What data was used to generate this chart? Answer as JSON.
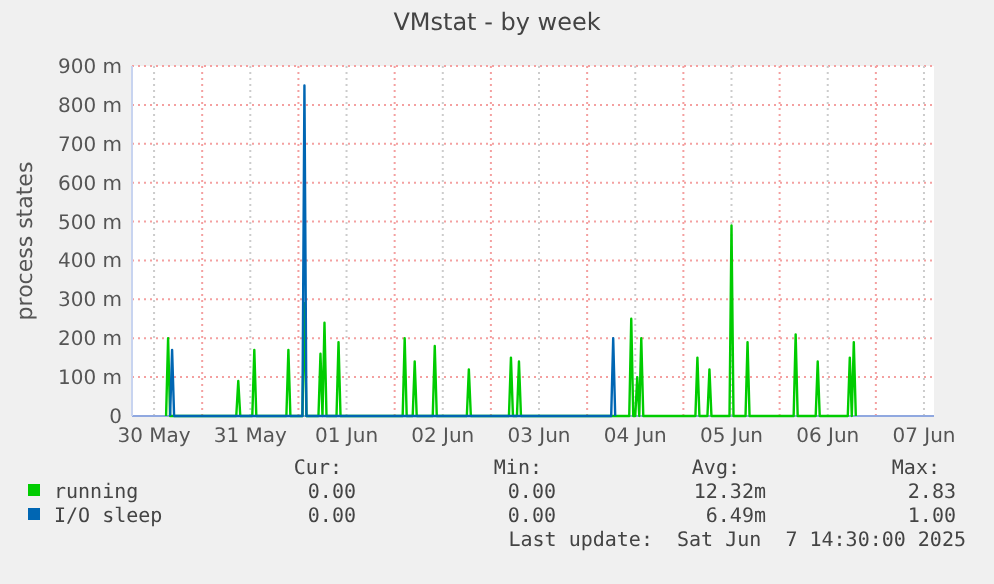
{
  "chart_data": {
    "type": "line",
    "title": "VMstat - by week",
    "ylabel": "process states",
    "xlim": [
      "2025-05-30T06:30",
      "2025-06-07T14:30"
    ],
    "xticks": [
      {
        "value": "2025-05-30T12:00",
        "label": "30 May"
      },
      {
        "value": "2025-05-31T00:00",
        "label": null
      },
      {
        "value": "2025-05-31T12:00",
        "label": "31 May"
      },
      {
        "value": "2025-06-01T00:00",
        "label": null
      },
      {
        "value": "2025-06-01T12:00",
        "label": "01 Jun"
      },
      {
        "value": "2025-06-02T00:00",
        "label": null
      },
      {
        "value": "2025-06-02T12:00",
        "label": "02 Jun"
      },
      {
        "value": "2025-06-03T00:00",
        "label": null
      },
      {
        "value": "2025-06-03T12:00",
        "label": "03 Jun"
      },
      {
        "value": "2025-06-04T00:00",
        "label": null
      },
      {
        "value": "2025-06-04T12:00",
        "label": "04 Jun"
      },
      {
        "value": "2025-06-05T00:00",
        "label": null
      },
      {
        "value": "2025-06-05T12:00",
        "label": "05 Jun"
      },
      {
        "value": "2025-06-06T00:00",
        "label": null
      },
      {
        "value": "2025-06-06T12:00",
        "label": "06 Jun"
      },
      {
        "value": "2025-06-07T00:00",
        "label": null
      },
      {
        "value": "2025-06-07T12:00",
        "label": "07 Jun"
      }
    ],
    "ylim": [
      0,
      900
    ],
    "yticks": [
      0,
      {
        "value": 100,
        "label": "100 m"
      },
      {
        "value": 200,
        "label": "200 m"
      },
      {
        "value": 300,
        "label": "300 m"
      },
      {
        "value": 400,
        "label": "400 m"
      },
      {
        "value": 500,
        "label": "500 m"
      },
      {
        "value": 600,
        "label": "600 m"
      },
      {
        "value": 700,
        "label": "700 m"
      },
      {
        "value": 800,
        "label": "800 m"
      },
      {
        "value": 900,
        "label": "900 m"
      }
    ],
    "grid": true,
    "legend": "bottom left",
    "line_style": "solid",
    "marker": "none",
    "series": [
      {
        "name": "running",
        "color": "#00cc00",
        "x": [
          "2025-05-30T15:00",
          "2025-05-30T15:30",
          "2025-05-30T16:00",
          "2025-05-31T08:30",
          "2025-05-31T09:00",
          "2025-05-31T09:30",
          "2025-05-31T12:30",
          "2025-05-31T13:00",
          "2025-05-31T13:30",
          "2025-05-31T21:00",
          "2025-05-31T21:30",
          "2025-05-31T22:00",
          "2025-06-01T01:00",
          "2025-06-01T01:30",
          "2025-06-01T02:00",
          "2025-06-01T05:00",
          "2025-06-01T05:30",
          "2025-06-01T06:00",
          "2025-06-01T06:30",
          "2025-06-01T07:00",
          "2025-06-01T09:30",
          "2025-06-01T10:00",
          "2025-06-01T10:30",
          "2025-06-02T02:00",
          "2025-06-02T02:30",
          "2025-06-02T03:00",
          "2025-06-02T04:30",
          "2025-06-02T05:00",
          "2025-06-02T05:30",
          "2025-06-02T09:30",
          "2025-06-02T10:00",
          "2025-06-02T10:30",
          "2025-06-02T18:00",
          "2025-06-02T18:30",
          "2025-06-02T19:00",
          "2025-06-03T04:30",
          "2025-06-03T05:00",
          "2025-06-03T05:30",
          "2025-06-03T06:30",
          "2025-06-03T07:00",
          "2025-06-03T07:30",
          "2025-06-04T10:30",
          "2025-06-04T11:00",
          "2025-06-04T11:30",
          "2025-06-04T12:00",
          "2025-06-04T12:30",
          "2025-06-04T13:00",
          "2025-06-04T13:30",
          "2025-06-04T14:00",
          "2025-06-05T03:00",
          "2025-06-05T03:30",
          "2025-06-05T04:00",
          "2025-06-05T06:00",
          "2025-06-05T06:30",
          "2025-06-05T07:00",
          "2025-06-05T11:30",
          "2025-06-05T12:00",
          "2025-06-05T12:30",
          "2025-06-05T15:30",
          "2025-06-05T16:00",
          "2025-06-05T16:30",
          "2025-06-06T03:30",
          "2025-06-06T04:00",
          "2025-06-06T04:30",
          "2025-06-06T09:00",
          "2025-06-06T09:30",
          "2025-06-06T10:00",
          "2025-06-06T17:00",
          "2025-06-06T17:30",
          "2025-06-06T18:00",
          "2025-06-06T18:30",
          "2025-06-06T19:00"
        ],
        "values": [
          0,
          200,
          0,
          0,
          90,
          0,
          0,
          170,
          0,
          0,
          170,
          0,
          0,
          290,
          0,
          0,
          160,
          0,
          240,
          0,
          0,
          190,
          0,
          0,
          200,
          0,
          0,
          140,
          0,
          0,
          180,
          0,
          0,
          120,
          0,
          0,
          150,
          0,
          0,
          140,
          0,
          0,
          250,
          0,
          0,
          100,
          0,
          200,
          0,
          0,
          150,
          0,
          0,
          120,
          0,
          0,
          490,
          0,
          0,
          190,
          0,
          0,
          210,
          0,
          0,
          140,
          0,
          0,
          150,
          0,
          190,
          0
        ]
      },
      {
        "name": "I/O sleep",
        "color": "#0066b3",
        "x": [
          "2025-05-30T16:00",
          "2025-05-30T16:30",
          "2025-05-30T17:00",
          "2025-06-01T01:00",
          "2025-06-01T01:30",
          "2025-06-01T02:00",
          "2025-06-04T06:00",
          "2025-06-04T06:30",
          "2025-06-04T07:00"
        ],
        "values": [
          0,
          170,
          0,
          0,
          850,
          0,
          0,
          200,
          0
        ]
      }
    ],
    "annotations": [
      "Cur:",
      "Min:",
      "Avg:",
      "Max:",
      "0.00",
      "0.00",
      "12.32m",
      "2.83",
      "0.00",
      "0.00",
      "6.49m",
      "1.00",
      "Last update:  Sat Jun  7 14:30:00 2025"
    ]
  }
}
